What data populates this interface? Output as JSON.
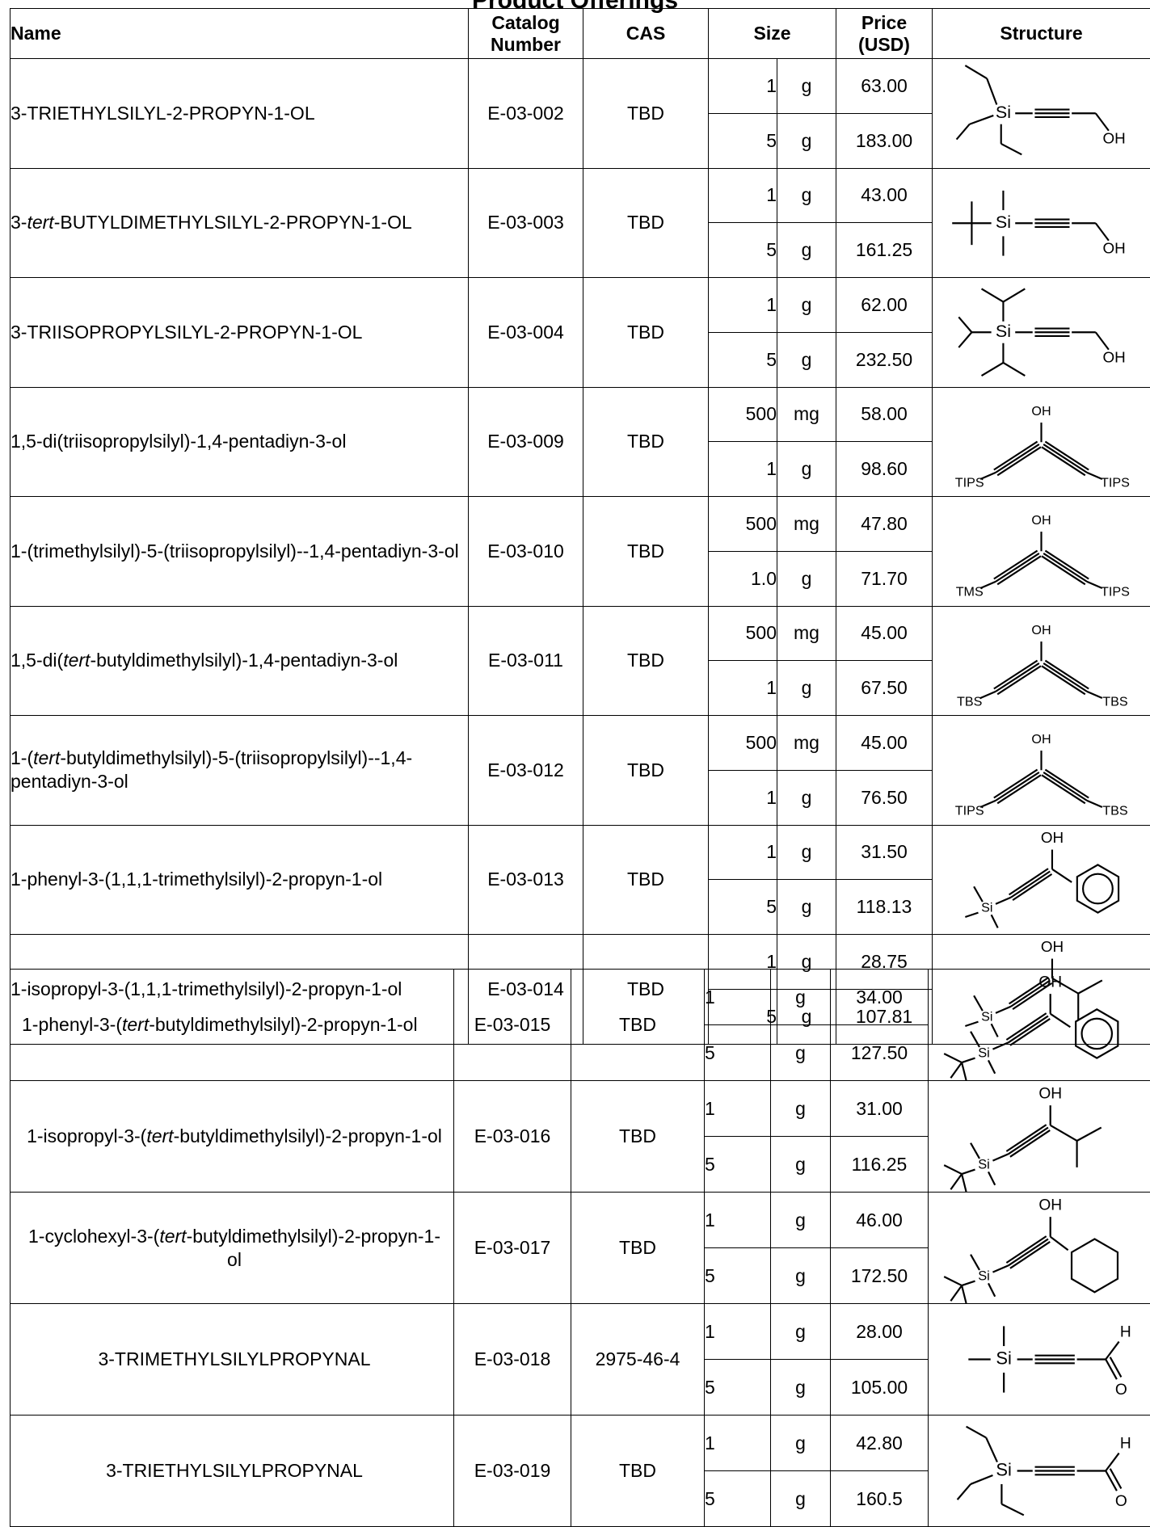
{
  "title": "Product Offerings",
  "headers": {
    "name": "Name",
    "catalog": "Catalog Number",
    "cas": "CAS",
    "size": "Size",
    "price": "Price (USD)",
    "structure": "Structure"
  },
  "products": [
    {
      "name_parts": [
        "3-TRIETHYLSILYL-2-PROPYN-1-OL"
      ],
      "catalog": "E-03-002",
      "cas": "TBD",
      "sizes": [
        {
          "qty": "1",
          "unit": "g",
          "price": "63.00"
        },
        {
          "qty": "5",
          "unit": "g",
          "price": "183.00"
        }
      ],
      "structure_icon": "triethylsilyl-propynol-structure-icon"
    },
    {
      "name_parts": [
        "3-",
        "tert",
        "-BUTYLDIMETHYLSILYL-2-PROPYN-1-OL"
      ],
      "catalog": "E-03-003",
      "cas": "TBD",
      "sizes": [
        {
          "qty": "1",
          "unit": "g",
          "price": "43.00"
        },
        {
          "qty": "5",
          "unit": "g",
          "price": "161.25"
        }
      ],
      "structure_icon": "tbs-propynol-structure-icon"
    },
    {
      "name_parts": [
        "3-TRIISOPROPYLSILYL-2-PROPYN-1-OL"
      ],
      "catalog": "E-03-004",
      "cas": "TBD",
      "sizes": [
        {
          "qty": "1",
          "unit": "g",
          "price": "62.00"
        },
        {
          "qty": "5",
          "unit": "g",
          "price": "232.50"
        }
      ],
      "structure_icon": "tips-propynol-structure-icon"
    },
    {
      "name_parts": [
        "1,5-di(triisopropylsilyl)-1,4-pentadiyn-3-ol"
      ],
      "catalog": "E-03-009",
      "cas": "TBD",
      "sizes": [
        {
          "qty": "500",
          "unit": "mg",
          "price": "58.00"
        },
        {
          "qty": "1",
          "unit": "g",
          "price": "98.60"
        }
      ],
      "structure_icon": "pentadiynol-structure-icon",
      "structure_labels": {
        "oh": "OH",
        "left": "TIPS",
        "right": "TIPS"
      }
    },
    {
      "name_parts": [
        "1-(trimethylsilyl)-5-(triisopropylsilyl)--1,4-pentadiyn-3-ol"
      ],
      "catalog": "E-03-010",
      "cas": "TBD",
      "sizes": [
        {
          "qty": "500",
          "unit": "mg",
          "price": "47.80"
        },
        {
          "qty": "1.0",
          "unit": "g",
          "price": "71.70"
        }
      ],
      "structure_icon": "pentadiynol-structure-icon",
      "structure_labels": {
        "oh": "OH",
        "left": "TMS",
        "right": "TIPS"
      }
    },
    {
      "name_parts": [
        "1,5-di(",
        "tert",
        "-butyldimethylsilyl)-1,4-pentadiyn-3-ol"
      ],
      "catalog": "E-03-011",
      "cas": "TBD",
      "sizes": [
        {
          "qty": "500",
          "unit": "mg",
          "price": "45.00"
        },
        {
          "qty": "1",
          "unit": "g",
          "price": "67.50"
        }
      ],
      "structure_icon": "pentadiynol-structure-icon",
      "structure_labels": {
        "oh": "OH",
        "left": "TBS",
        "right": "TBS"
      }
    },
    {
      "name_parts": [
        "1-(",
        "tert",
        "-butyldimethylsilyl)-5-(triisopropylsilyl)--1,4-pentadiyn-3-ol"
      ],
      "catalog": "E-03-012",
      "cas": "TBD",
      "sizes": [
        {
          "qty": "500",
          "unit": "mg",
          "price": "45.00"
        },
        {
          "qty": "1",
          "unit": "g",
          "price": "76.50"
        }
      ],
      "structure_icon": "pentadiynol-structure-icon",
      "structure_labels": {
        "oh": "OH",
        "left": "TIPS",
        "right": "TBS"
      }
    },
    {
      "name_parts": [
        "1-phenyl-3-(1,1,1-trimethylsilyl)-2-propyn-1-ol"
      ],
      "catalog": "E-03-013",
      "cas": "TBD",
      "sizes": [
        {
          "qty": "1",
          "unit": "g",
          "price": "31.50"
        },
        {
          "qty": "5",
          "unit": "g",
          "price": "118.13"
        }
      ],
      "structure_icon": "tms-propynol-phenyl-structure-icon"
    },
    {
      "name_parts": [
        "1-isopropyl-3-(1,1,1-trimethylsilyl)-2-propyn-1-ol"
      ],
      "catalog": "E-03-014",
      "cas": "TBD",
      "sizes": [
        {
          "qty": "1",
          "unit": "g",
          "price": "28.75"
        },
        {
          "qty": "5",
          "unit": "g",
          "price": "107.81"
        }
      ],
      "structure_icon": "tms-propynol-isopropyl-structure-icon"
    },
    {
      "name_parts": [
        "1-phenyl-3-(",
        "tert",
        "-butyldimethylsilyl)-2-propyn-1-ol"
      ],
      "catalog": "E-03-015",
      "cas": "TBD",
      "sizes": [
        {
          "qty": "1",
          "unit": "g",
          "price": "34.00"
        },
        {
          "qty": "5",
          "unit": "g",
          "price": "127.50"
        }
      ],
      "structure_icon": "tbs-propynol-phenyl-structure-icon"
    },
    {
      "name_parts": [
        "1-isopropyl-3-(",
        "tert",
        "-butyldimethylsilyl)-2-propyn-1-ol"
      ],
      "catalog": "E-03-016",
      "cas": "TBD",
      "sizes": [
        {
          "qty": "1",
          "unit": "g",
          "price": "31.00"
        },
        {
          "qty": "5",
          "unit": "g",
          "price": "116.25"
        }
      ],
      "structure_icon": "tbs-propynol-isopropyl-structure-icon"
    },
    {
      "name_parts": [
        "1-cyclohexyl-3-(",
        "tert",
        "-butyldimethylsilyl)-2-propyn-1-ol"
      ],
      "catalog": "E-03-017",
      "cas": "TBD",
      "sizes": [
        {
          "qty": "1",
          "unit": "g",
          "price": "46.00"
        },
        {
          "qty": "5",
          "unit": "g",
          "price": "172.50"
        }
      ],
      "structure_icon": "tbs-propynol-cyclohexyl-structure-icon"
    },
    {
      "name_parts": [
        "3-TRIMETHYLSILYLPROPYNAL"
      ],
      "catalog": "E-03-018",
      "cas": "2975-46-4",
      "sizes": [
        {
          "qty": "1",
          "unit": "g",
          "price": "28.00"
        },
        {
          "qty": "5",
          "unit": "g",
          "price": "105.00"
        }
      ],
      "structure_icon": "tms-propynal-structure-icon"
    },
    {
      "name_parts": [
        "3-TRIETHYLSILYLPROPYNAL"
      ],
      "catalog": "E-03-019",
      "cas": "TBD",
      "sizes": [
        {
          "qty": "1",
          "unit": "g",
          "price": "42.80"
        },
        {
          "qty": "5",
          "unit": "g",
          "price": "160.5"
        }
      ],
      "structure_icon": "tes-propynal-structure-icon"
    }
  ],
  "atom_labels": {
    "si": "Si",
    "oh": "OH",
    "h": "H",
    "o": "O"
  }
}
